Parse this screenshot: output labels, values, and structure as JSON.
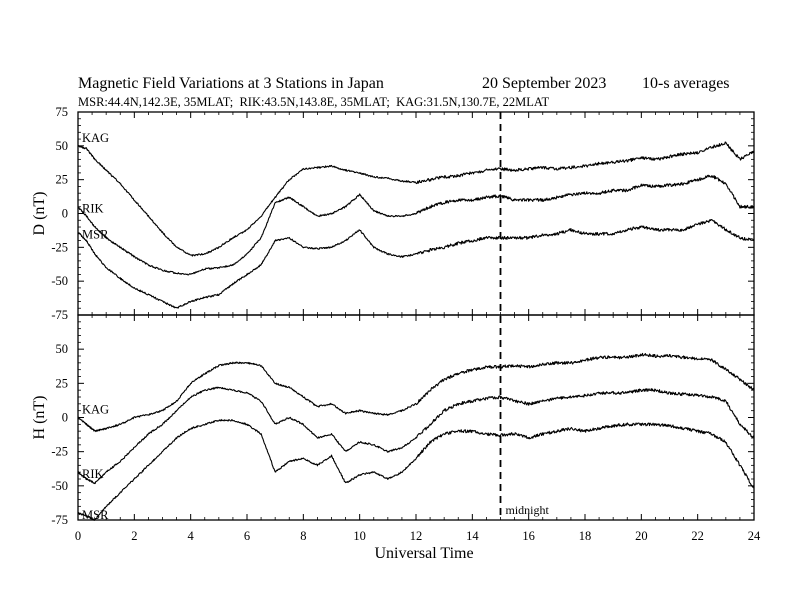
{
  "chart_data": {
    "type": "line",
    "title": "Magnetic Field Variations at 3 Stations in Japan",
    "date": "20 September 2023",
    "averaging": "10-s averages",
    "subtitle": "MSR:44.4N,142.3E, 35MLAT;  RIK:43.5N,143.8E, 35MLAT;  KAG:31.5N,130.7E, 22MLAT",
    "xlabel": "Universal Time",
    "xlim": [
      0,
      24
    ],
    "xticks": [
      0,
      2,
      4,
      6,
      8,
      10,
      12,
      14,
      16,
      18,
      20,
      22,
      24
    ],
    "xtick_labels": [
      "0",
      "2",
      "4",
      "6",
      "8",
      "10",
      "12",
      "14",
      "16",
      "18",
      "20",
      "22",
      "24"
    ],
    "annotation": {
      "x": 15,
      "text": "midnight",
      "style": "dashed vertical line"
    },
    "grid": false,
    "legend": "none (series labeled inline at left)",
    "panels": [
      {
        "ylabel": "D (nT)",
        "ylim": [
          -75,
          75
        ],
        "yticks": [
          -75,
          -50,
          -25,
          0,
          25,
          50,
          75
        ],
        "ytick_labels": [
          "-75",
          "-50",
          "-25",
          "0",
          "25",
          "50",
          "75"
        ],
        "series": [
          {
            "name": "KAG",
            "x": [
              0,
              0.3,
              0.6,
              1,
              1.5,
              2,
              2.5,
              3,
              3.5,
              4,
              4.5,
              5,
              5.5,
              6,
              6.5,
              7,
              7.5,
              8,
              8.5,
              9,
              9.5,
              10,
              10.5,
              11,
              11.5,
              12,
              12.5,
              13,
              13.5,
              14,
              14.5,
              15,
              15.5,
              16,
              16.5,
              17,
              17.5,
              18,
              18.5,
              19,
              19.5,
              20,
              20.5,
              21,
              21.5,
              22,
              22.5,
              23,
              23.5,
              24
            ],
            "y": [
              50,
              48,
              40,
              32,
              22,
              10,
              -2,
              -14,
              -25,
              -31,
              -30,
              -25,
              -18,
              -12,
              -2,
              12,
              25,
              33,
              34,
              35,
              32,
              30,
              27,
              26,
              24,
              23,
              25,
              27,
              28,
              30,
              32,
              33,
              32,
              33,
              34,
              33,
              34,
              35,
              37,
              38,
              39,
              41,
              40,
              42,
              44,
              45,
              49,
              52,
              40,
              46
            ]
          },
          {
            "name": "RIK",
            "x": [
              0,
              0.3,
              0.6,
              1,
              1.5,
              2,
              2.5,
              3,
              3.5,
              4,
              4.5,
              5,
              5.5,
              6,
              6.5,
              7,
              7.5,
              8,
              8.5,
              9,
              9.5,
              10,
              10.5,
              11,
              11.5,
              12,
              12.5,
              13,
              13.5,
              14,
              14.5,
              15,
              15.5,
              16,
              16.5,
              17,
              17.5,
              18,
              18.5,
              19,
              19.5,
              20,
              20.5,
              21,
              21.5,
              22,
              22.5,
              23,
              23.5,
              24
            ],
            "y": [
              5,
              -2,
              -10,
              -18,
              -25,
              -32,
              -38,
              -42,
              -44,
              -45,
              -41,
              -40,
              -38,
              -30,
              -18,
              8,
              12,
              5,
              -2,
              0,
              5,
              14,
              2,
              -2,
              -2,
              0,
              5,
              8,
              10,
              10,
              12,
              13,
              10,
              10,
              10,
              12,
              14,
              15,
              15,
              17,
              17,
              21,
              20,
              21,
              22,
              25,
              28,
              22,
              5,
              5
            ]
          },
          {
            "name": "MSR",
            "x": [
              0,
              0.3,
              0.6,
              1,
              1.5,
              2,
              2.5,
              3,
              3.5,
              4,
              4.5,
              5,
              5.5,
              6,
              6.5,
              7,
              7.5,
              8,
              8.5,
              9,
              9.5,
              10,
              10.5,
              11,
              11.5,
              12,
              12.5,
              13,
              13.5,
              14,
              14.5,
              15,
              15.5,
              16,
              16.5,
              17,
              17.5,
              18,
              18.5,
              19,
              19.5,
              20,
              20.5,
              21,
              21.5,
              22,
              22.5,
              23,
              23.5,
              24
            ],
            "y": [
              -14,
              -20,
              -30,
              -40,
              -48,
              -55,
              -60,
              -65,
              -70,
              -65,
              -62,
              -60,
              -52,
              -45,
              -38,
              -20,
              -18,
              -25,
              -26,
              -25,
              -20,
              -12,
              -25,
              -30,
              -32,
              -30,
              -27,
              -25,
              -22,
              -20,
              -18,
              -18,
              -18,
              -18,
              -16,
              -15,
              -12,
              -15,
              -15,
              -15,
              -12,
              -10,
              -12,
              -12,
              -12,
              -8,
              -5,
              -12,
              -18,
              -20
            ]
          }
        ]
      },
      {
        "ylabel": "H (nT)",
        "ylim": [
          -75,
          75
        ],
        "yticks": [
          -75,
          -50,
          -25,
          0,
          25,
          50,
          75
        ],
        "ytick_labels": [
          "-75",
          "-50",
          "-25",
          "0",
          "25",
          "50",
          "75"
        ],
        "series": [
          {
            "name": "KAG",
            "x": [
              0,
              0.3,
              0.6,
              1,
              1.5,
              2,
              2.5,
              3,
              3.5,
              4,
              4.5,
              5,
              5.5,
              6,
              6.5,
              7,
              7.5,
              8,
              8.5,
              9,
              9.5,
              10,
              10.5,
              11,
              11.5,
              12,
              12.5,
              13,
              13.5,
              14,
              14.5,
              15,
              15.5,
              16,
              16.5,
              17,
              17.5,
              18,
              18.5,
              19,
              19.5,
              20,
              20.5,
              21,
              21.5,
              22,
              22.5,
              23,
              23.5,
              24
            ],
            "y": [
              0,
              -5,
              -10,
              -8,
              -5,
              0,
              2,
              5,
              12,
              25,
              32,
              38,
              40,
              40,
              38,
              25,
              22,
              15,
              8,
              10,
              3,
              5,
              3,
              2,
              5,
              10,
              20,
              28,
              32,
              35,
              37,
              37,
              38,
              37,
              39,
              40,
              40,
              42,
              44,
              44,
              44,
              46,
              45,
              45,
              44,
              43,
              42,
              35,
              28,
              20
            ]
          },
          {
            "name": "RIK",
            "x": [
              0,
              0.3,
              0.6,
              1,
              1.5,
              2,
              2.5,
              3,
              3.5,
              4,
              4.5,
              5,
              5.5,
              6,
              6.5,
              7,
              7.5,
              8,
              8.5,
              9,
              9.5,
              10,
              10.5,
              11,
              11.5,
              12,
              12.5,
              13,
              13.5,
              14,
              14.5,
              15,
              15.5,
              16,
              16.5,
              17,
              17.5,
              18,
              18.5,
              19,
              19.5,
              20,
              20.5,
              21,
              21.5,
              22,
              22.5,
              23,
              23.5,
              24
            ],
            "y": [
              -40,
              -45,
              -48,
              -40,
              -32,
              -22,
              -12,
              -5,
              5,
              15,
              20,
              22,
              20,
              18,
              12,
              -5,
              0,
              -5,
              -15,
              -12,
              -25,
              -18,
              -20,
              -25,
              -22,
              -15,
              -5,
              5,
              10,
              12,
              14,
              15,
              12,
              10,
              12,
              14,
              15,
              16,
              18,
              18,
              18,
              20,
              20,
              18,
              17,
              16,
              15,
              12,
              -5,
              -15
            ]
          },
          {
            "name": "MSR",
            "x": [
              0,
              0.3,
              0.6,
              1,
              1.5,
              2,
              2.5,
              3,
              3.5,
              4,
              4.5,
              5,
              5.5,
              6,
              6.5,
              7,
              7.5,
              8,
              8.5,
              9,
              9.5,
              10,
              10.5,
              11,
              11.5,
              12,
              12.5,
              13,
              13.5,
              14,
              14.5,
              15,
              15.5,
              16,
              16.5,
              17,
              17.5,
              18,
              18.5,
              19,
              19.5,
              20,
              20.5,
              21,
              21.5,
              22,
              22.5,
              23,
              23.5,
              24
            ],
            "y": [
              -70,
              -72,
              -75,
              -65,
              -55,
              -45,
              -35,
              -25,
              -15,
              -8,
              -5,
              -2,
              -2,
              -5,
              -12,
              -40,
              -32,
              -30,
              -35,
              -28,
              -48,
              -42,
              -40,
              -45,
              -40,
              -30,
              -18,
              -12,
              -10,
              -10,
              -12,
              -13,
              -12,
              -15,
              -12,
              -10,
              -8,
              -10,
              -8,
              -6,
              -5,
              -5,
              -5,
              -6,
              -8,
              -10,
              -12,
              -18,
              -35,
              -52
            ]
          }
        ]
      }
    ]
  }
}
